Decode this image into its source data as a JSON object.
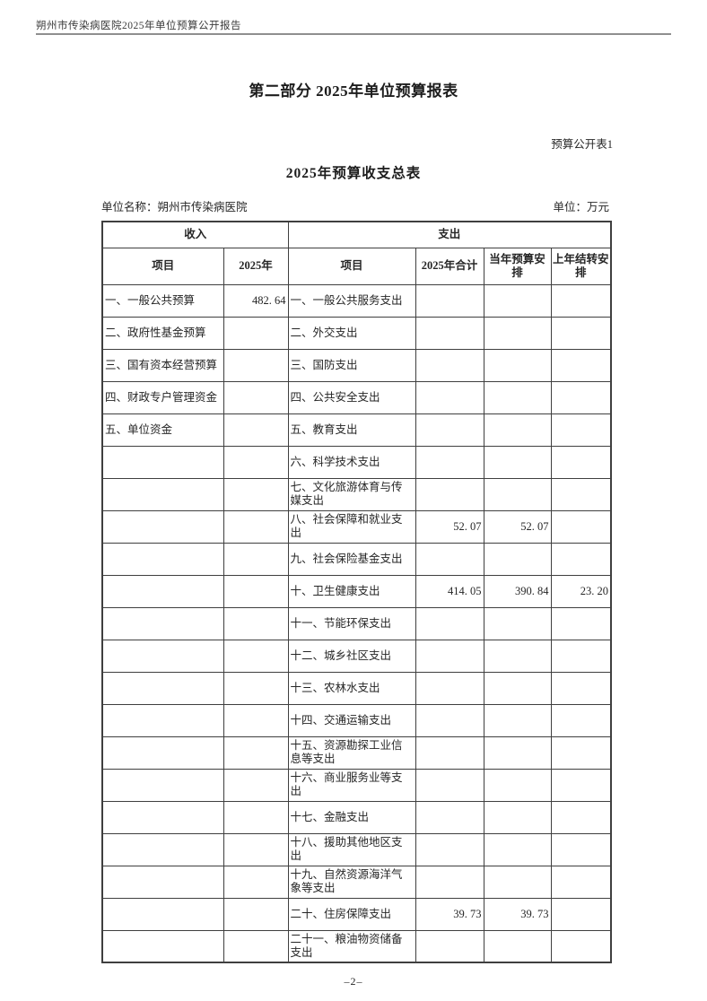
{
  "page": {
    "running_header": "朔州市传染病医院2025年单位预算公开报告",
    "section_title": "第二部分 2025年单位预算报表",
    "sheet_label": "预算公开表1",
    "table_title": "2025年预算收支总表",
    "unit_name": "单位名称：朔州市传染病医院",
    "unit": "单位：万元",
    "page_number": "–2–"
  },
  "table": {
    "group_headers": {
      "income": "收入",
      "expense": "支出"
    },
    "column_headers": {
      "income_item": "项目",
      "income_year": "2025年",
      "expense_item": "项目",
      "expense_total": "2025年合计",
      "expense_current": "当年预算安排",
      "expense_carryover": "上年结转安排"
    },
    "rows": [
      {
        "income_item": "一、一般公共预算",
        "income_2025": "482. 64",
        "expense_item": "一、一般公共服务支出",
        "total_2025": "",
        "current_year": "",
        "carryover": ""
      },
      {
        "income_item": "二、政府性基金预算",
        "income_2025": "",
        "expense_item": "二、外交支出",
        "total_2025": "",
        "current_year": "",
        "carryover": ""
      },
      {
        "income_item": "三、国有资本经营预算",
        "income_2025": "",
        "expense_item": "三、国防支出",
        "total_2025": "",
        "current_year": "",
        "carryover": ""
      },
      {
        "income_item": "四、财政专户管理资金",
        "income_2025": "",
        "expense_item": "四、公共安全支出",
        "total_2025": "",
        "current_year": "",
        "carryover": ""
      },
      {
        "income_item": "五、单位资金",
        "income_2025": "",
        "expense_item": "五、教育支出",
        "total_2025": "",
        "current_year": "",
        "carryover": ""
      },
      {
        "income_item": "",
        "income_2025": "",
        "expense_item": "六、科学技术支出",
        "total_2025": "",
        "current_year": "",
        "carryover": ""
      },
      {
        "income_item": "",
        "income_2025": "",
        "expense_item": "七、文化旅游体育与传媒支出",
        "total_2025": "",
        "current_year": "",
        "carryover": ""
      },
      {
        "income_item": "",
        "income_2025": "",
        "expense_item": "八、社会保障和就业支出",
        "total_2025": "52. 07",
        "current_year": "52. 07",
        "carryover": ""
      },
      {
        "income_item": "",
        "income_2025": "",
        "expense_item": "九、社会保险基金支出",
        "total_2025": "",
        "current_year": "",
        "carryover": ""
      },
      {
        "income_item": "",
        "income_2025": "",
        "expense_item": "十、卫生健康支出",
        "total_2025": "414. 05",
        "current_year": "390. 84",
        "carryover": "23. 20"
      },
      {
        "income_item": "",
        "income_2025": "",
        "expense_item": "十一、节能环保支出",
        "total_2025": "",
        "current_year": "",
        "carryover": ""
      },
      {
        "income_item": "",
        "income_2025": "",
        "expense_item": "十二、城乡社区支出",
        "total_2025": "",
        "current_year": "",
        "carryover": ""
      },
      {
        "income_item": "",
        "income_2025": "",
        "expense_item": "十三、农林水支出",
        "total_2025": "",
        "current_year": "",
        "carryover": ""
      },
      {
        "income_item": "",
        "income_2025": "",
        "expense_item": "十四、交通运输支出",
        "total_2025": "",
        "current_year": "",
        "carryover": ""
      },
      {
        "income_item": "",
        "income_2025": "",
        "expense_item": "十五、资源勘探工业信息等支出",
        "total_2025": "",
        "current_year": "",
        "carryover": ""
      },
      {
        "income_item": "",
        "income_2025": "",
        "expense_item": "十六、商业服务业等支出",
        "total_2025": "",
        "current_year": "",
        "carryover": ""
      },
      {
        "income_item": "",
        "income_2025": "",
        "expense_item": "十七、金融支出",
        "total_2025": "",
        "current_year": "",
        "carryover": ""
      },
      {
        "income_item": "",
        "income_2025": "",
        "expense_item": "十八、援助其他地区支出",
        "total_2025": "",
        "current_year": "",
        "carryover": ""
      },
      {
        "income_item": "",
        "income_2025": "",
        "expense_item": "十九、自然资源海洋气象等支出",
        "total_2025": "",
        "current_year": "",
        "carryover": ""
      },
      {
        "income_item": "",
        "income_2025": "",
        "expense_item": "二十、住房保障支出",
        "total_2025": "39. 73",
        "current_year": "39. 73",
        "carryover": ""
      },
      {
        "income_item": "",
        "income_2025": "",
        "expense_item": "二十一、粮油物资储备支出",
        "total_2025": "",
        "current_year": "",
        "carryover": ""
      }
    ]
  }
}
